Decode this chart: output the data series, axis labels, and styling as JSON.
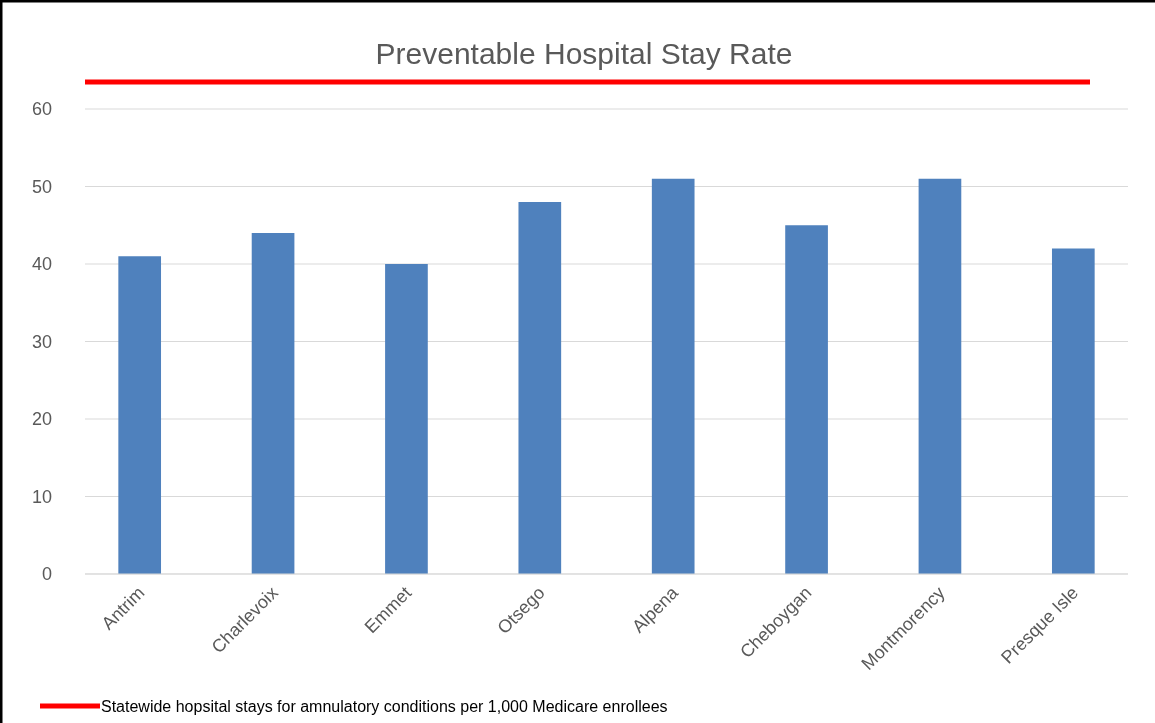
{
  "chart_data": {
    "type": "bar",
    "title": "Preventable Hospital Stay Rate",
    "categories": [
      "Antrim",
      "Charlevoix",
      "Emmet",
      "Otsego",
      "Alpena",
      "Cheboygan",
      "Montmorency",
      "Presque Isle"
    ],
    "values": [
      41,
      44,
      40,
      48,
      51,
      45,
      51,
      42
    ],
    "color": "#4f81bd",
    "ylim": [
      0,
      60
    ],
    "yticks": [
      0,
      10,
      20,
      30,
      40,
      50,
      60
    ],
    "grid": "y",
    "ref_lines": [
      {
        "axis": "y",
        "value": 63.5,
        "label": "Statewide hopsital stays for amnulatory conditions per 1,000 Medicare enrollees",
        "color": "#ff0000"
      }
    ]
  }
}
